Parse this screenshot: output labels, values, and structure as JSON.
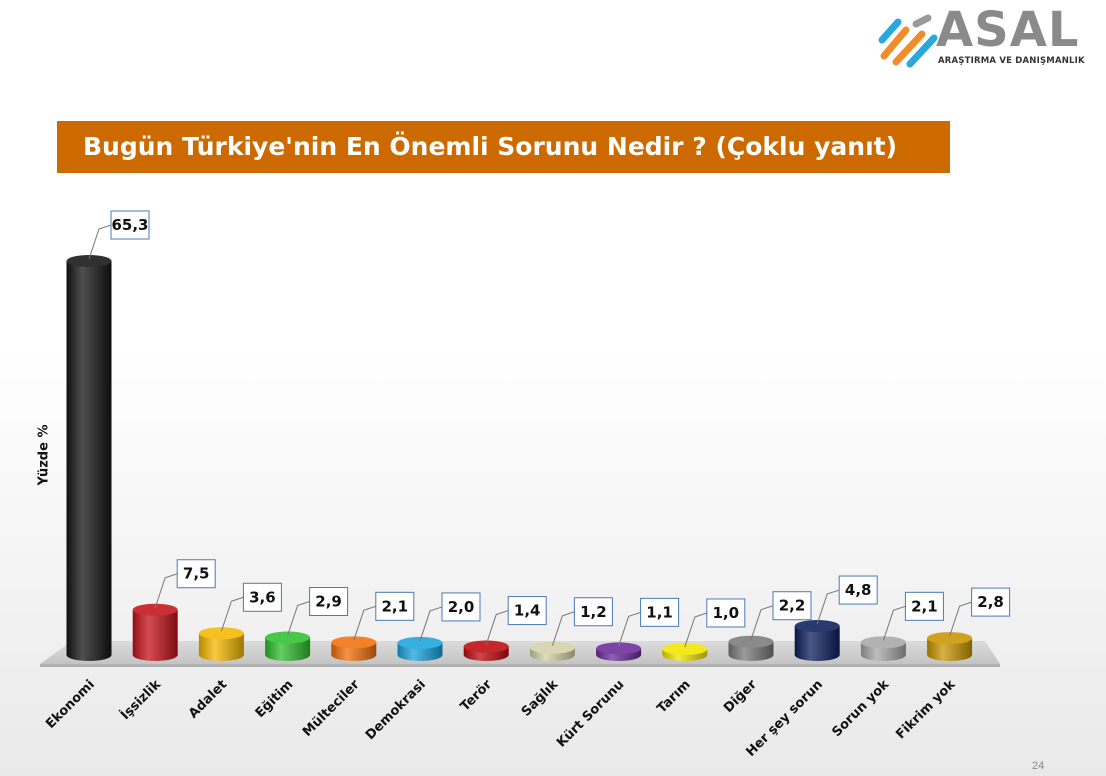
{
  "logo": {
    "name": "ASAL",
    "subtitle": "ARAŞTIRMA VE DANIŞMANLIK",
    "colors": [
      "#f28c28",
      "#29a8e0",
      "#9a9a9a"
    ]
  },
  "page_number": "24",
  "chart_data": {
    "type": "bar",
    "title": "Bugün Türkiye'nin En Önemli Sorunu Nedir ? (Çoklu yanıt)",
    "ylabel": "Yüzde  %",
    "xlabel": "",
    "ylim": [
      0,
      70
    ],
    "grid": false,
    "legend": "none",
    "categories": [
      "Ekonomi",
      "İşsizlik",
      "Adalet",
      "Eğitim",
      "Mülteciler",
      "Demokrasi",
      "Terör",
      "Sağlık",
      "Kürt Sorunu",
      "Tarım",
      "Diğer",
      "Her şey sorun",
      "Sorun yok",
      "Fikrim yok"
    ],
    "values": [
      65.3,
      7.5,
      3.6,
      2.9,
      2.1,
      2.0,
      1.4,
      1.2,
      1.1,
      1.0,
      2.2,
      4.8,
      2.1,
      2.8
    ],
    "value_labels": [
      "65,3",
      "7,5",
      "3,6",
      "2,9",
      "2,1",
      "2,0",
      "1,4",
      "1,2",
      "1,1",
      "1,0",
      "2,2",
      "4,8",
      "2,1",
      "2,8"
    ],
    "colors": [
      "#141414",
      "#c4121a",
      "#f5b800",
      "#2fbf2f",
      "#f26f0a",
      "#1aa3dc",
      "#bd0a10",
      "#d4d2a8",
      "#6a2a9a",
      "#f2e600",
      "#7a7a7a",
      "#0c1f5e",
      "#a8a8a8",
      "#c99700"
    ]
  }
}
